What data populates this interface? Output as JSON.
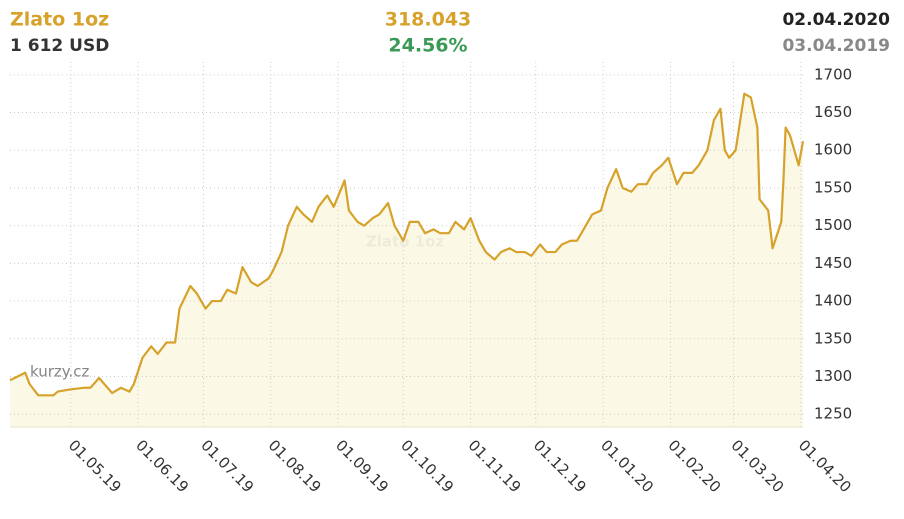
{
  "header": {
    "name": "Zlato 1oz",
    "price": "1 612 USD",
    "change": "318.043",
    "change_pct": "24.56%",
    "date_to": "02.04.2020",
    "date_from": "03.04.2019"
  },
  "chart_data": {
    "type": "line",
    "watermark": "Zlato 1oz",
    "logo": "kurzy.cz",
    "color": "#d6a22b",
    "fill": "#fbf8e6",
    "grid": true,
    "xlim": [
      "03.04.19",
      "02.04.20"
    ],
    "xticks": [
      "01.05.19",
      "01.06.19",
      "01.07.19",
      "01.08.19",
      "01.09.19",
      "01.10.19",
      "01.11.19",
      "01.12.19",
      "01.01.20",
      "01.02.20",
      "01.03.20",
      "01.04.20"
    ],
    "ylim": [
      1233,
      1717
    ],
    "yticks": [
      1250,
      1300,
      1350,
      1400,
      1450,
      1500,
      1550,
      1600,
      1650,
      1700
    ],
    "x": [
      "03.04.19",
      "10.04.19",
      "12.04.19",
      "16.04.19",
      "23.04.19",
      "25.04.19",
      "01.05.19",
      "07.05.19",
      "10.05.19",
      "14.05.19",
      "20.05.19",
      "24.05.19",
      "28.05.19",
      "30.05.19",
      "03.06.19",
      "07.06.19",
      "10.06.19",
      "14.06.19",
      "18.06.19",
      "20.06.19",
      "25.06.19",
      "28.06.19",
      "02.07.19",
      "05.07.19",
      "09.07.19",
      "12.07.19",
      "16.07.19",
      "19.07.19",
      "23.07.19",
      "26.07.19",
      "31.07.19",
      "02.08.19",
      "06.08.19",
      "09.08.19",
      "13.08.19",
      "16.08.19",
      "20.08.19",
      "23.08.19",
      "27.08.19",
      "30.08.19",
      "04.09.19",
      "06.09.19",
      "10.09.19",
      "13.09.19",
      "17.09.19",
      "20.09.19",
      "24.09.19",
      "27.09.19",
      "01.10.19",
      "04.10.19",
      "08.10.19",
      "11.10.19",
      "15.10.19",
      "18.10.19",
      "22.10.19",
      "25.10.19",
      "29.10.19",
      "01.11.19",
      "05.11.19",
      "08.11.19",
      "12.11.19",
      "15.11.19",
      "19.11.19",
      "22.11.19",
      "26.11.19",
      "29.11.19",
      "03.12.19",
      "06.12.19",
      "10.12.19",
      "13.12.19",
      "17.12.19",
      "20.12.19",
      "24.12.19",
      "27.12.19",
      "31.12.19",
      "03.01.20",
      "07.01.20",
      "10.01.20",
      "14.01.20",
      "17.01.20",
      "21.01.20",
      "24.01.20",
      "28.01.20",
      "31.01.20",
      "04.02.20",
      "07.02.20",
      "11.02.20",
      "14.02.20",
      "18.02.20",
      "21.02.20",
      "24.02.20",
      "26.02.20",
      "28.02.20",
      "02.03.20",
      "06.03.20",
      "09.03.20",
      "12.03.20",
      "13.03.20",
      "17.03.20",
      "19.03.20",
      "23.03.20",
      "24.03.20",
      "25.03.20",
      "27.03.20",
      "31.03.20",
      "02.04.20"
    ],
    "values": [
      1295,
      1305,
      1290,
      1275,
      1275,
      1280,
      1283,
      1285,
      1285,
      1298,
      1278,
      1285,
      1280,
      1290,
      1325,
      1340,
      1330,
      1345,
      1345,
      1390,
      1420,
      1410,
      1390,
      1400,
      1400,
      1415,
      1410,
      1445,
      1425,
      1420,
      1430,
      1440,
      1465,
      1500,
      1525,
      1515,
      1505,
      1525,
      1540,
      1525,
      1560,
      1520,
      1505,
      1500,
      1510,
      1515,
      1530,
      1500,
      1480,
      1505,
      1505,
      1490,
      1495,
      1490,
      1490,
      1505,
      1495,
      1510,
      1480,
      1465,
      1455,
      1465,
      1470,
      1465,
      1465,
      1460,
      1475,
      1465,
      1465,
      1475,
      1480,
      1480,
      1500,
      1515,
      1520,
      1550,
      1575,
      1550,
      1545,
      1555,
      1555,
      1570,
      1580,
      1590,
      1555,
      1570,
      1570,
      1580,
      1600,
      1640,
      1655,
      1600,
      1590,
      1600,
      1675,
      1670,
      1630,
      1535,
      1520,
      1470,
      1505,
      1560,
      1630,
      1620,
      1580,
      1612
    ]
  }
}
